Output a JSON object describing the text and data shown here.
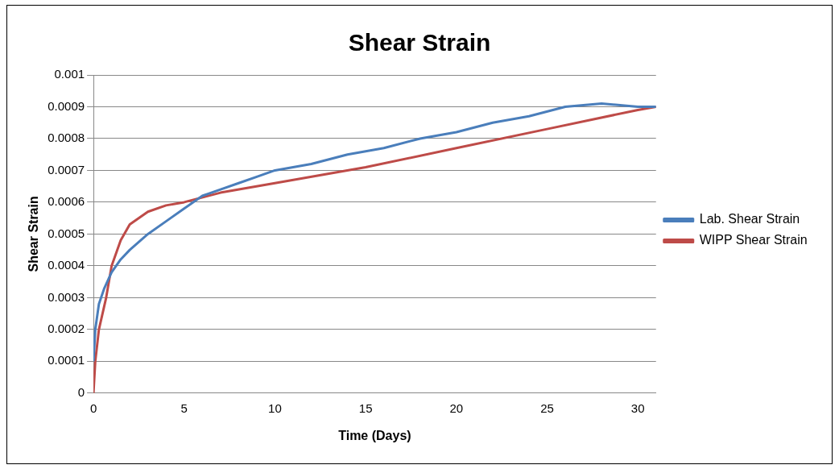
{
  "chart_data": {
    "type": "line",
    "title": "Shear Strain",
    "xlabel": "Time (Days)",
    "ylabel": "Shear Strain",
    "xlim": [
      0,
      31
    ],
    "xticks": [
      0,
      5,
      10,
      15,
      20,
      25,
      30
    ],
    "ylim": [
      0,
      0.001
    ],
    "yticks": [
      0,
      0.0001,
      0.0002,
      0.0003,
      0.0004,
      0.0005,
      0.0006,
      0.0007,
      0.0008,
      0.0009,
      0.001
    ],
    "grid": "y",
    "legend": "right",
    "marker": "none",
    "line_style": "solid",
    "series": [
      {
        "name": "Lab. Shear Strain",
        "color": "#4a7ebb",
        "x": [
          0,
          0.1,
          0.3,
          0.6,
          1,
          1.5,
          2,
          3,
          4,
          5,
          6,
          7,
          8,
          9,
          10,
          12,
          14,
          16,
          18,
          20,
          22,
          24,
          26,
          28,
          30,
          31
        ],
        "values": [
          0.0001,
          0.0002,
          0.00028,
          0.00033,
          0.00038,
          0.00042,
          0.00045,
          0.0005,
          0.00054,
          0.00058,
          0.00062,
          0.00064,
          0.00066,
          0.00068,
          0.0007,
          0.00072,
          0.00075,
          0.00077,
          0.0008,
          0.00082,
          0.00085,
          0.00087,
          0.0009,
          0.00091,
          0.0009,
          0.0009
        ]
      },
      {
        "name": "WIPP Shear Strain",
        "color": "#be4b48",
        "x": [
          0,
          0.1,
          0.3,
          0.7,
          1,
          1.5,
          2,
          3,
          4,
          5,
          7,
          10,
          15,
          20,
          25,
          30,
          31
        ],
        "values": [
          0,
          0.0001,
          0.0002,
          0.0003,
          0.0004,
          0.00048,
          0.00053,
          0.00057,
          0.00059,
          0.0006,
          0.00063,
          0.00066,
          0.00071,
          0.00077,
          0.00083,
          0.00089,
          0.0009
        ]
      }
    ]
  }
}
